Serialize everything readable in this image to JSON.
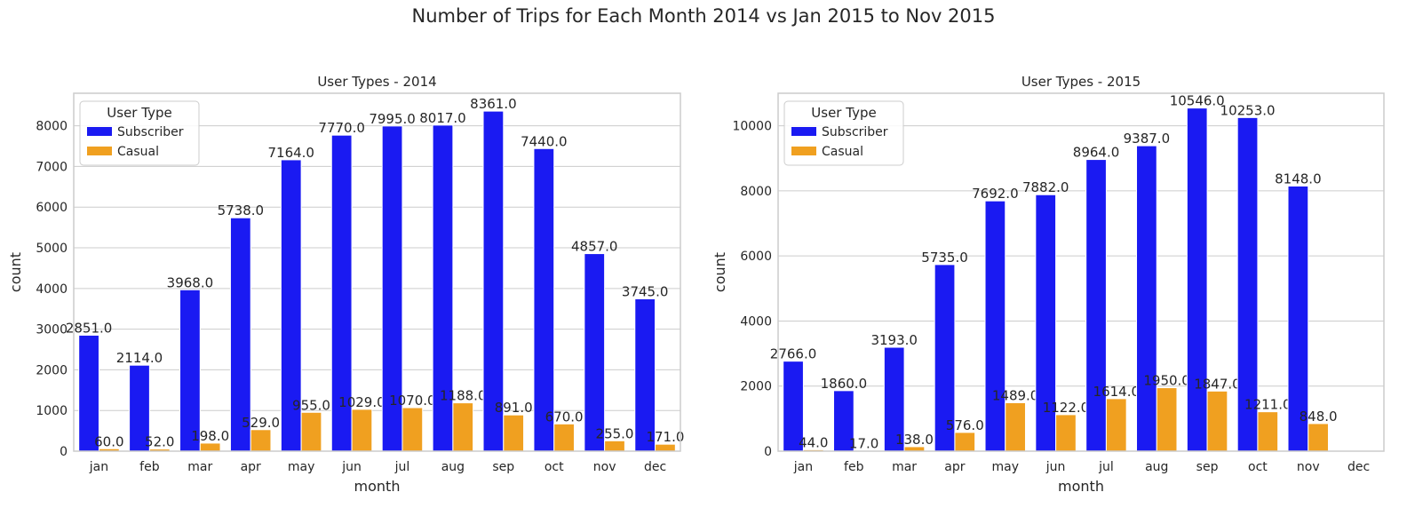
{
  "figure": {
    "title": "Number of Trips for Each Month 2014 vs Jan 2015 to Nov 2015"
  },
  "colors": {
    "subscriber": "#1a1af2",
    "casual": "#f0a020",
    "grid": "#cccccc",
    "axes_edge": "#cccccc",
    "legend_edge": "#cccccc"
  },
  "chart_data": [
    {
      "type": "bar",
      "title": "User Types - 2014",
      "xlabel": "month",
      "ylabel": "count",
      "ylim": [
        0,
        8800
      ],
      "yticks": [
        0,
        1000,
        2000,
        3000,
        4000,
        5000,
        6000,
        7000,
        8000
      ],
      "grid": true,
      "categories": [
        "jan",
        "feb",
        "mar",
        "apr",
        "may",
        "jun",
        "jul",
        "aug",
        "sep",
        "oct",
        "nov",
        "dec"
      ],
      "series": [
        {
          "name": "Subscriber",
          "values": [
            2851.0,
            2114.0,
            3968.0,
            5738.0,
            7164.0,
            7770.0,
            7995.0,
            8017.0,
            8361.0,
            7440.0,
            4857.0,
            3745.0
          ]
        },
        {
          "name": "Casual",
          "values": [
            60.0,
            52.0,
            198.0,
            529.0,
            955.0,
            1029.0,
            1070.0,
            1188.0,
            891.0,
            670.0,
            255.0,
            171.0
          ]
        }
      ],
      "data_labels": [
        [
          "2851.0",
          "2114.0",
          "3968.0",
          "5738.0",
          "7164.0",
          "7770.0",
          "7995.0",
          "8017.0",
          "8361.0",
          "7440.0",
          "4857.0",
          "3745.0"
        ],
        [
          "60.0",
          "52.0",
          "198.0",
          "529.0",
          "955.0",
          "1029.0",
          "1070.0",
          "1188.0",
          "891.0",
          "670.0",
          "255.0",
          "171.0"
        ]
      ],
      "legend": {
        "title": "User Type",
        "placement": "top-left"
      }
    },
    {
      "type": "bar",
      "title": "User Types - 2015",
      "xlabel": "month",
      "ylabel": "count",
      "ylim": [
        0,
        11000
      ],
      "yticks": [
        0,
        2000,
        4000,
        6000,
        8000,
        10000
      ],
      "grid": true,
      "categories": [
        "jan",
        "feb",
        "mar",
        "apr",
        "may",
        "jun",
        "jul",
        "aug",
        "sep",
        "oct",
        "nov",
        "dec"
      ],
      "series": [
        {
          "name": "Subscriber",
          "values": [
            2766.0,
            1860.0,
            3193.0,
            5735.0,
            7692.0,
            7882.0,
            8964.0,
            9387.0,
            10546.0,
            10253.0,
            8148.0,
            null
          ]
        },
        {
          "name": "Casual",
          "values": [
            44.0,
            17.0,
            138.0,
            576.0,
            1489.0,
            1122.0,
            1614.0,
            1950.0,
            1847.0,
            1211.0,
            848.0,
            null
          ]
        }
      ],
      "data_labels": [
        [
          "2766.0",
          "1860.0",
          "3193.0",
          "5735.0",
          "7692.0",
          "7882.0",
          "8964.0",
          "9387.0",
          "10546.0",
          "10253.0",
          "8148.0",
          null
        ],
        [
          "44.0",
          "17.0",
          "138.0",
          "576.0",
          "1489.0",
          "1122.0",
          "1614.0",
          "1950.0",
          "1847.0",
          "1211.0",
          "848.0",
          null
        ]
      ],
      "legend": {
        "title": "User Type",
        "placement": "top-left"
      }
    }
  ]
}
